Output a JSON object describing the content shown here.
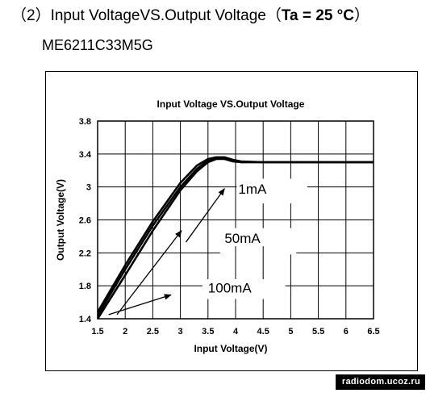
{
  "header": {
    "prefix": "（2）Input VoltageVS.Output Voltage（",
    "condition": "Ta = 25 °C",
    "suffix": "）",
    "part_number": "ME6211C33M5G"
  },
  "watermark": "radiodom.ucoz.ru",
  "chart_data": {
    "type": "line",
    "title": "Input Voltage VS.Output Voltage",
    "xlabel": "Input Voltage(V)",
    "ylabel": "Output Voltage(V)",
    "xlim": [
      1.5,
      6.5
    ],
    "ylim": [
      1.4,
      3.8
    ],
    "xticks": [
      1.5,
      2,
      2.5,
      3,
      3.5,
      4,
      4.5,
      5,
      5.5,
      6,
      6.5
    ],
    "yticks": [
      1.4,
      1.8,
      2.2,
      2.6,
      3,
      3.4,
      3.8
    ],
    "xtick_labels": [
      "1.5",
      "2",
      "2.5",
      "3",
      "3.5",
      "4",
      "4.5",
      "5",
      "5.5",
      "6",
      "6.5"
    ],
    "ytick_labels": [
      "1.4",
      "1.8",
      "2.2",
      "2.6",
      "3",
      "3.4",
      "3.8"
    ],
    "grid": true,
    "series": [
      {
        "name": "1mA",
        "x": [
          1.5,
          2.0,
          2.5,
          3.0,
          3.3,
          3.5,
          3.65,
          3.8,
          3.95,
          4.1,
          4.5,
          5,
          5.5,
          6,
          6.5
        ],
        "y": [
          1.48,
          2.05,
          2.58,
          3.05,
          3.26,
          3.34,
          3.36,
          3.36,
          3.33,
          3.31,
          3.3,
          3.3,
          3.3,
          3.3,
          3.3
        ]
      },
      {
        "name": "50mA",
        "x": [
          1.5,
          2.0,
          2.5,
          3.0,
          3.3,
          3.5,
          3.65,
          3.8,
          3.95,
          4.1,
          4.5,
          5,
          5.5,
          6,
          6.5
        ],
        "y": [
          1.44,
          2.0,
          2.53,
          3.0,
          3.22,
          3.32,
          3.35,
          3.35,
          3.32,
          3.3,
          3.3,
          3.3,
          3.3,
          3.3,
          3.3
        ]
      },
      {
        "name": "100mA",
        "x": [
          1.5,
          2.0,
          2.5,
          3.0,
          3.3,
          3.5,
          3.65,
          3.8,
          3.95,
          4.1,
          4.5,
          5,
          5.5,
          6,
          6.5
        ],
        "y": [
          1.4,
          1.93,
          2.47,
          2.96,
          3.19,
          3.3,
          3.34,
          3.34,
          3.31,
          3.3,
          3.3,
          3.3,
          3.3,
          3.3,
          3.3
        ]
      }
    ],
    "annotations": [
      {
        "text": "1mA",
        "label_at": [
          4.05,
          2.92
        ],
        "arrow_from": [
          3.1,
          2.33
        ],
        "arrow_to": [
          3.8,
          2.98
        ]
      },
      {
        "text": "50mA",
        "label_at": [
          3.8,
          2.32
        ],
        "arrow_from": [
          1.85,
          1.45
        ],
        "arrow_to": [
          3.02,
          2.47
        ]
      },
      {
        "text": "100mA",
        "label_at": [
          3.5,
          1.72
        ],
        "arrow_from": [
          1.7,
          1.45
        ],
        "arrow_to": [
          2.83,
          1.69
        ]
      }
    ]
  }
}
